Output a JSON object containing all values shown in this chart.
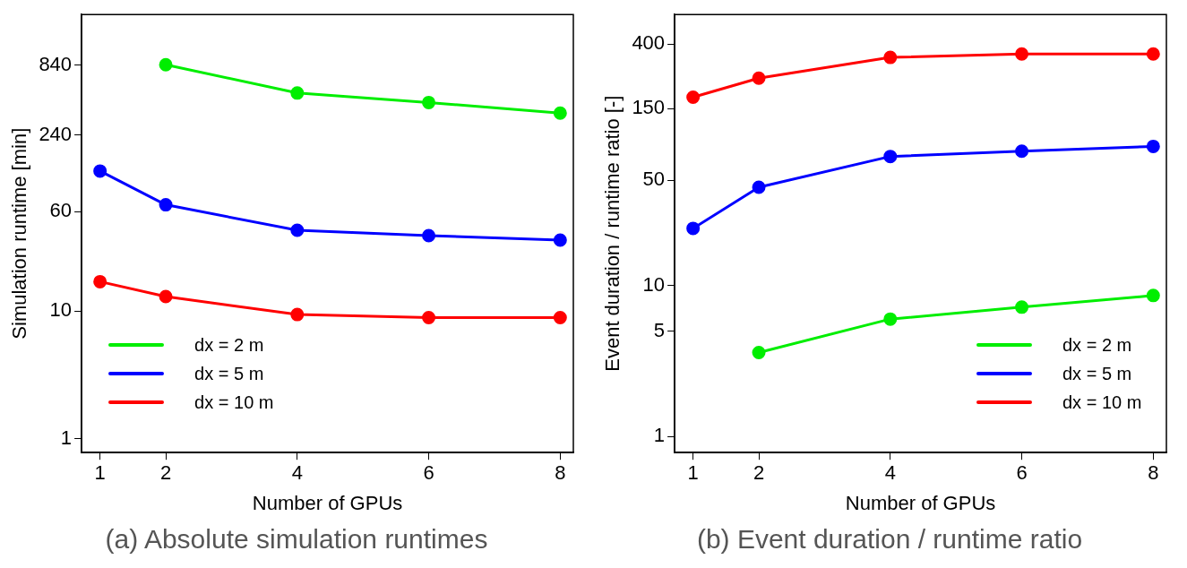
{
  "chart_data": [
    {
      "type": "line",
      "xlabel": "Number of GPUs",
      "ylabel": "Simulation runtime [min]",
      "x": [
        1,
        2,
        4,
        6,
        8
      ],
      "xlim": [
        0.72,
        8.2
      ],
      "xticks": [
        1,
        2,
        4,
        6,
        8
      ],
      "log": "y",
      "ylim": [
        0.78,
        2100
      ],
      "yticks": [
        1,
        10,
        60,
        240,
        840
      ],
      "marker": "circle",
      "line_style": "solid",
      "grid": false,
      "legend": "bottom left",
      "annotations": [
        "(a) Absolute simulation runtimes"
      ],
      "series": [
        {
          "name": "dx = 2 m",
          "color": "#00ee00",
          "values": [
            null,
            850,
            510,
            430,
            355
          ]
        },
        {
          "name": "dx = 5 m",
          "color": "#0000ff",
          "values": [
            125,
            68,
            43,
            39,
            36
          ]
        },
        {
          "name": "dx = 10 m",
          "color": "#ff0000",
          "values": [
            17,
            13,
            9.4,
            8.9,
            8.9
          ]
        }
      ]
    },
    {
      "type": "line",
      "xlabel": "Number of GPUs",
      "ylabel": "Event duration / runtime ratio [-]",
      "x": [
        1,
        2,
        4,
        6,
        8
      ],
      "xlim": [
        0.72,
        8.2
      ],
      "xticks": [
        1,
        2,
        4,
        6,
        8
      ],
      "log": "y",
      "ylim": [
        0.78,
        630
      ],
      "yticks": [
        1,
        5,
        10,
        50,
        150,
        400
      ],
      "marker": "circle",
      "line_style": "solid",
      "grid": false,
      "legend": "bottom right",
      "annotations": [
        "(b) Event duration / runtime ratio"
      ],
      "series": [
        {
          "name": "dx = 2 m",
          "color": "#00ee00",
          "values": [
            null,
            3.6,
            6.0,
            7.2,
            8.6
          ]
        },
        {
          "name": "dx = 5 m",
          "color": "#0000ff",
          "values": [
            24,
            45,
            72,
            78,
            84
          ]
        },
        {
          "name": "dx = 10 m",
          "color": "#ff0000",
          "values": [
            178,
            238,
            327,
            345,
            345
          ]
        }
      ]
    }
  ]
}
